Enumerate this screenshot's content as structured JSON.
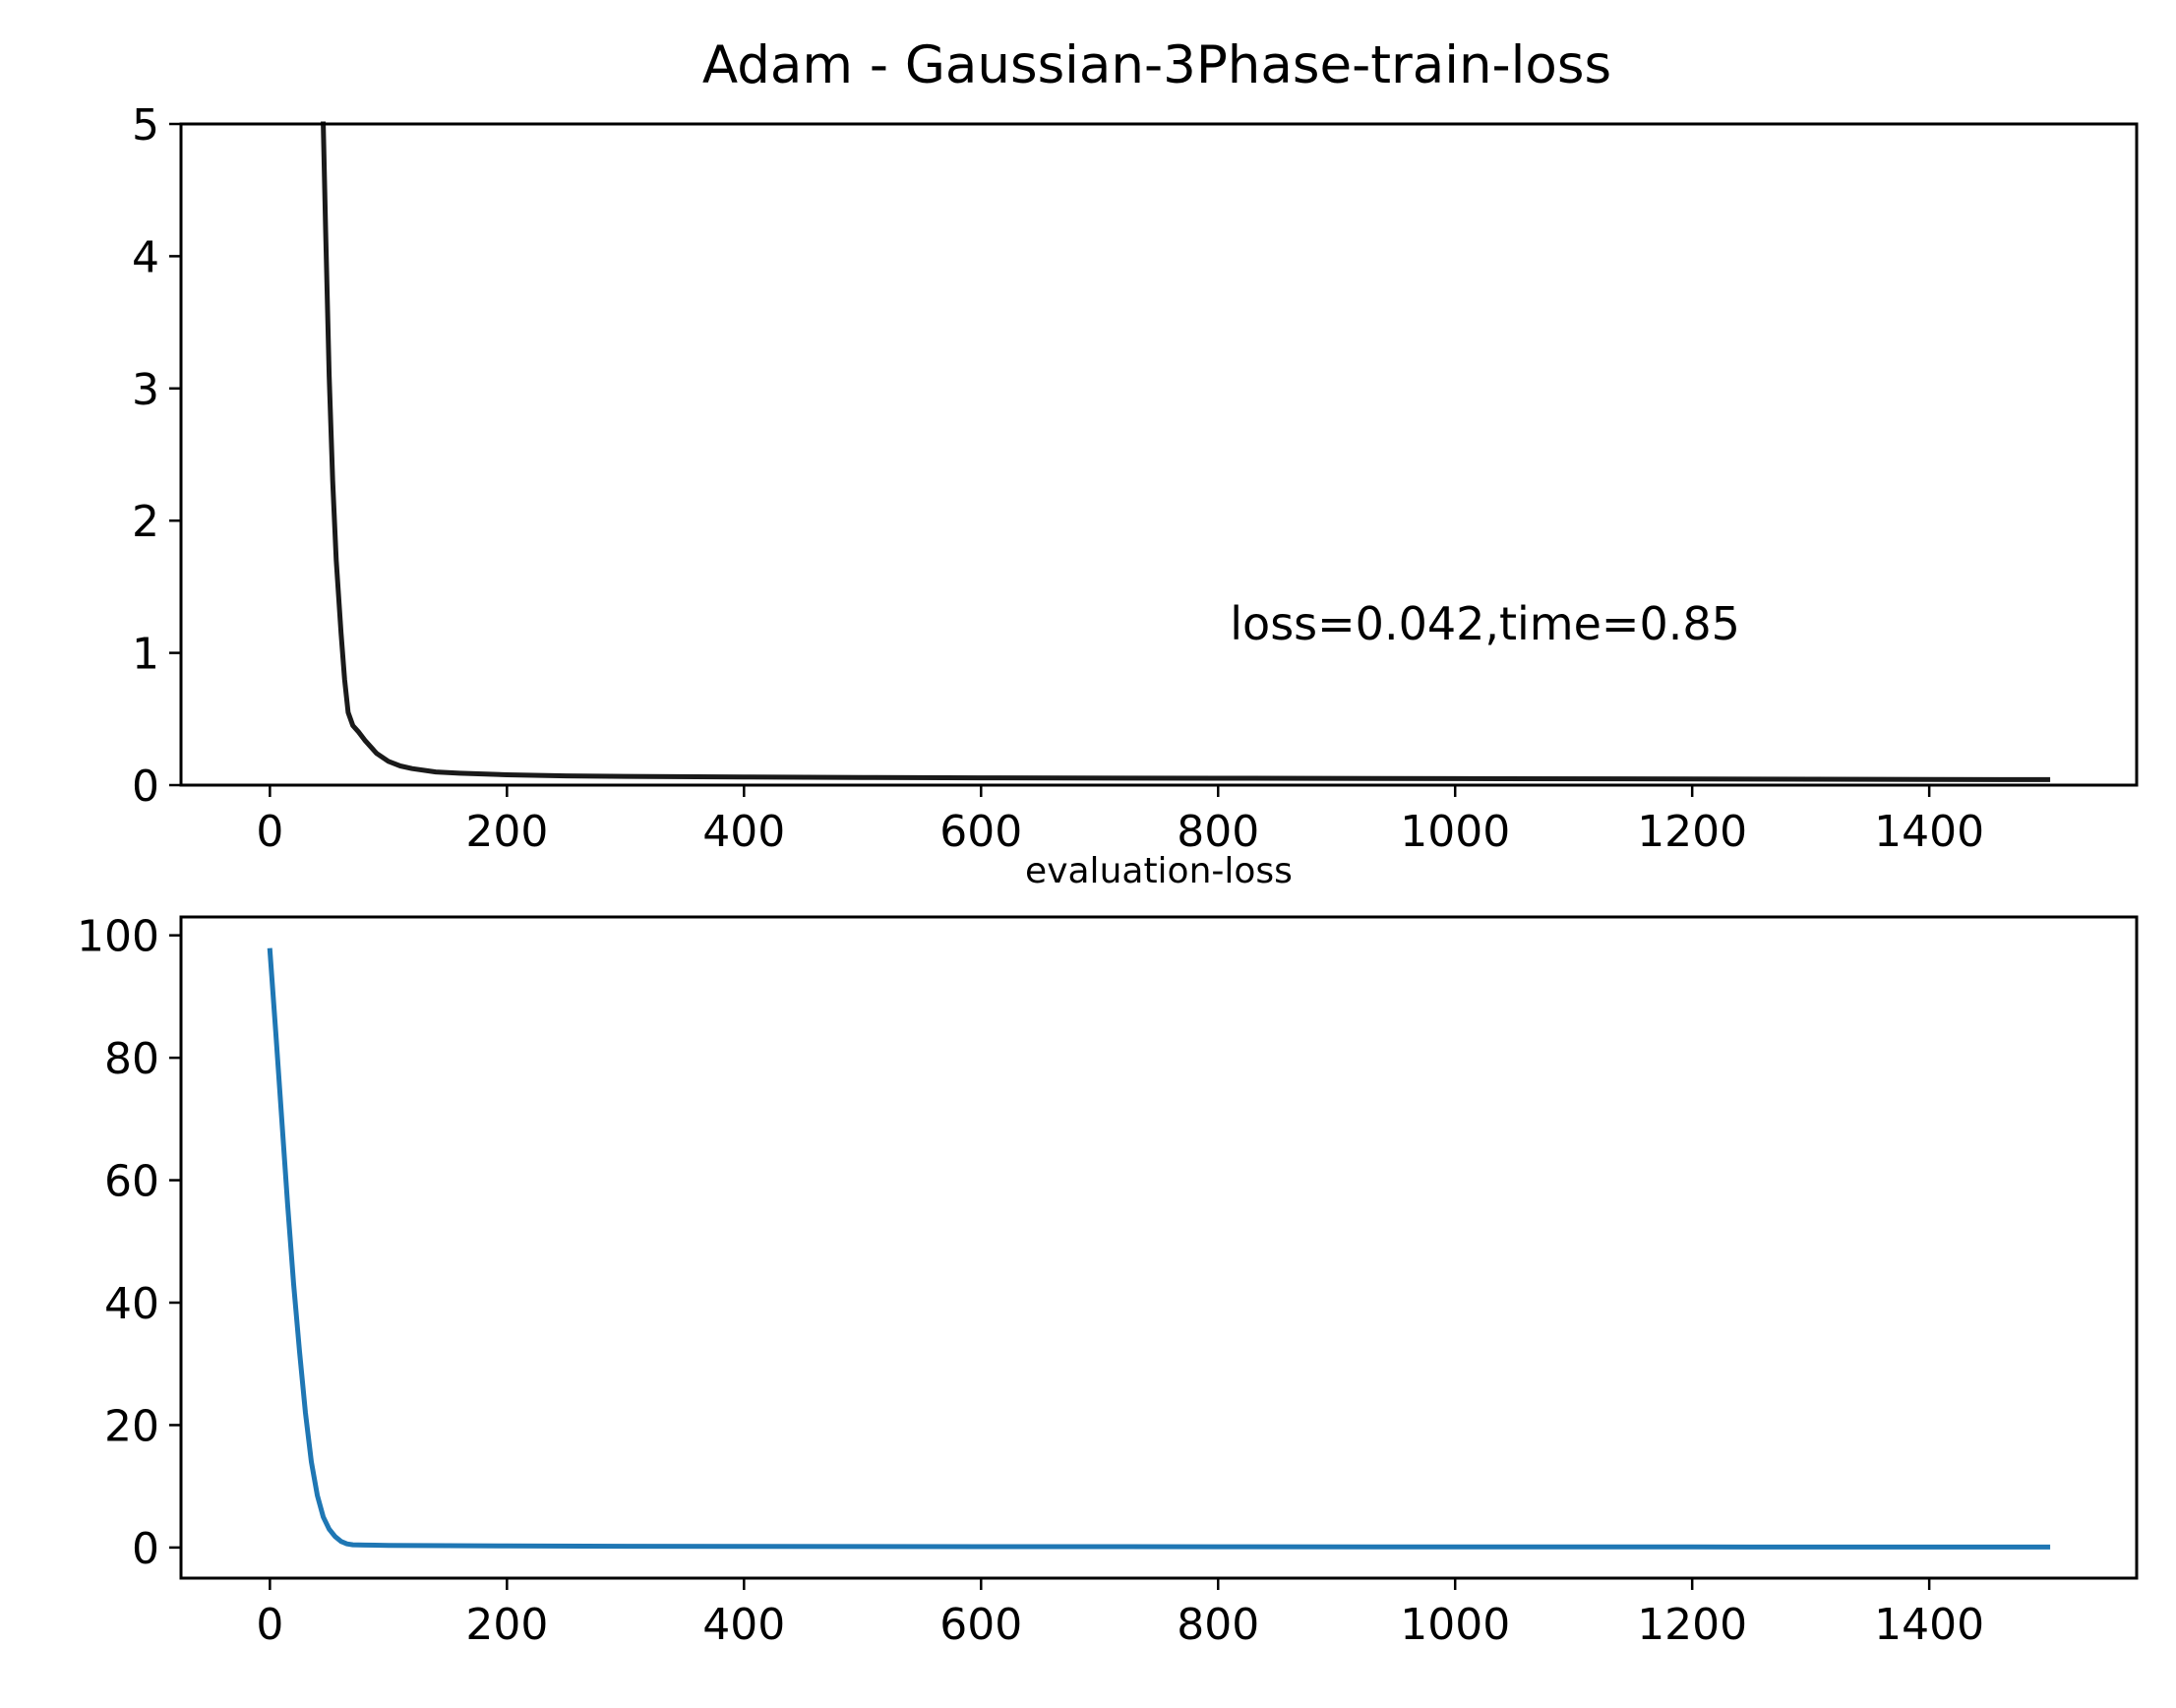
{
  "chart_data": [
    {
      "type": "line",
      "title": "Adam - Gaussian-3Phase-train-loss",
      "xlim": [
        -75,
        1575
      ],
      "ylim": [
        0,
        5
      ],
      "xticks": [
        0,
        200,
        400,
        600,
        800,
        1000,
        1200,
        1400
      ],
      "yticks": [
        0,
        1,
        2,
        3,
        4,
        5
      ],
      "annotation": {
        "text": "loss=0.042,time=0.85",
        "x": 810,
        "y": 1.1
      },
      "series": [
        {
          "color": "#1a1a1a",
          "x": [
            45,
            47,
            50,
            53,
            56,
            60,
            63,
            66,
            70,
            75,
            80,
            90,
            100,
            110,
            120,
            140,
            160,
            200,
            250,
            300,
            400,
            500,
            600,
            800,
            1000,
            1200,
            1400,
            1500
          ],
          "y": [
            5.0,
            4.2,
            3.1,
            2.3,
            1.7,
            1.15,
            0.8,
            0.55,
            0.45,
            0.4,
            0.34,
            0.24,
            0.18,
            0.145,
            0.125,
            0.1,
            0.09,
            0.078,
            0.07,
            0.066,
            0.062,
            0.058,
            0.055,
            0.052,
            0.049,
            0.046,
            0.043,
            0.042
          ]
        }
      ]
    },
    {
      "type": "line",
      "title": "evaluation-loss",
      "xlim": [
        -75,
        1575
      ],
      "ylim": [
        -5,
        103
      ],
      "xticks": [
        0,
        200,
        400,
        600,
        800,
        1000,
        1200,
        1400
      ],
      "yticks": [
        0,
        20,
        40,
        60,
        80,
        100
      ],
      "series": [
        {
          "color": "#1f77b4",
          "x": [
            0,
            5,
            10,
            15,
            20,
            25,
            30,
            35,
            40,
            45,
            50,
            55,
            60,
            65,
            70,
            80,
            100,
            150,
            200,
            300,
            400,
            600,
            800,
            1000,
            1200,
            1400,
            1500
          ],
          "y": [
            97.5,
            84,
            70,
            56,
            43,
            32,
            22,
            14,
            8.5,
            5,
            3,
            1.8,
            1.0,
            0.6,
            0.45,
            0.4,
            0.35,
            0.3,
            0.25,
            0.2,
            0.18,
            0.15,
            0.12,
            0.1,
            0.09,
            0.08,
            0.08
          ]
        }
      ]
    }
  ]
}
